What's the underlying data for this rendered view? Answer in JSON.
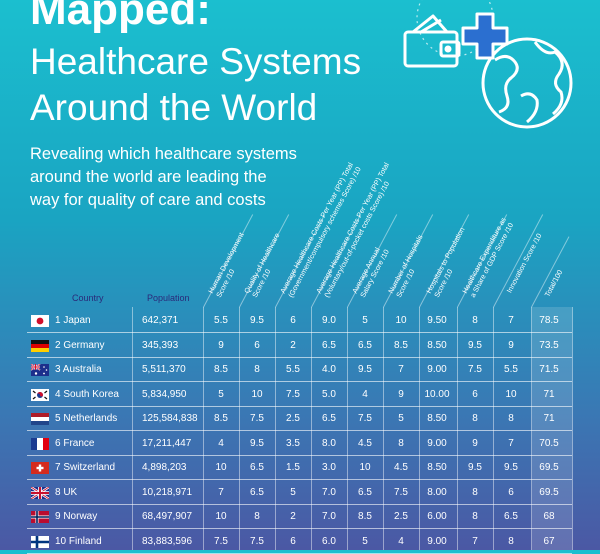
{
  "header": {
    "title": "Mapped:",
    "subtitle_line1": "Healthcare Systems",
    "subtitle_line2": "Around the World",
    "description_line1": "Revealing which healthcare systems",
    "description_line2": "around the world are leading the",
    "description_line3": "way for quality of care and costs"
  },
  "icons": [
    "wallet-icon",
    "medical-cross-icon",
    "globe-icon"
  ],
  "colors": {
    "teal": "#1bbfcf",
    "purple": "#4b58a4",
    "label_blue": "#2a2a7a"
  },
  "chart_data": {
    "type": "table",
    "columns": {
      "country": "Country",
      "population": "Population",
      "scores": [
        {
          "line1": "Human Development",
          "line2": "Score /10"
        },
        {
          "line1": "Quality of Healthcare",
          "line2": "Score /10"
        },
        {
          "line1": "Average Healthcare Costs Per Year (PP) Total",
          "line2": "(Government/compulsory schemes Score) /10"
        },
        {
          "line1": "Average Healthcare Costs Per Year (PP) Total",
          "line2": "(Voluntary/out-of-pocket costs Score) /10"
        },
        {
          "line1": "Average Annual",
          "line2": "Salary Score /10"
        },
        {
          "line1": "Number of Hospitals",
          "line2": "Score /10"
        },
        {
          "line1": "Hospitals to Population",
          "line2": "Score /10"
        },
        {
          "line1": "Healthcare Expenditure as",
          "line2": "a Share of GDP Score /10"
        },
        {
          "line1": "Innovation Score /10",
          "line2": ""
        },
        {
          "line1": "Total/100",
          "line2": ""
        }
      ]
    },
    "rows": [
      {
        "rank": "1",
        "country": "Japan",
        "flag": "japan-flag-icon",
        "population": "642,371",
        "scores": [
          "5.5",
          "9.5",
          "6",
          "9.0",
          "5",
          "10",
          "9.50",
          "8",
          "7",
          "78.5"
        ]
      },
      {
        "rank": "2",
        "country": "Germany",
        "flag": "germany-flag-icon",
        "population": "345,393",
        "scores": [
          "9",
          "6",
          "2",
          "6.5",
          "6.5",
          "8.5",
          "8.50",
          "9.5",
          "9",
          "73.5"
        ]
      },
      {
        "rank": "3",
        "country": "Australia",
        "flag": "australia-flag-icon",
        "population": "5,511,370",
        "scores": [
          "8.5",
          "8",
          "5.5",
          "4.0",
          "9.5",
          "7",
          "9.00",
          "7.5",
          "5.5",
          "71.5"
        ]
      },
      {
        "rank": "4",
        "country": "South Korea",
        "flag": "south-korea-flag-icon",
        "population": "5,834,950",
        "scores": [
          "5",
          "10",
          "7.5",
          "5.0",
          "4",
          "9",
          "10.00",
          "6",
          "10",
          "71"
        ]
      },
      {
        "rank": "5",
        "country": "Netherlands",
        "flag": "netherlands-flag-icon",
        "population": "125,584,838",
        "scores": [
          "8.5",
          "7.5",
          "2.5",
          "6.5",
          "7.5",
          "5",
          "8.50",
          "8",
          "8",
          "71"
        ]
      },
      {
        "rank": "6",
        "country": "France",
        "flag": "france-flag-icon",
        "population": "17,211,447",
        "scores": [
          "4",
          "9.5",
          "3.5",
          "8.0",
          "4.5",
          "8",
          "9.00",
          "9",
          "7",
          "70.5"
        ]
      },
      {
        "rank": "7",
        "country": "Switzerland",
        "flag": "switzerland-flag-icon",
        "population": "4,898,203",
        "scores": [
          "10",
          "6.5",
          "1.5",
          "3.0",
          "10",
          "4.5",
          "8.50",
          "9.5",
          "9.5",
          "69.5"
        ]
      },
      {
        "rank": "8",
        "country": "UK",
        "flag": "uk-flag-icon",
        "population": "10,218,971",
        "scores": [
          "7",
          "6.5",
          "5",
          "7.0",
          "6.5",
          "7.5",
          "8.00",
          "8",
          "6",
          "69.5"
        ]
      },
      {
        "rank": "9",
        "country": "Norway",
        "flag": "norway-flag-icon",
        "population": "68,497,907",
        "scores": [
          "10",
          "8",
          "2",
          "7.0",
          "8.5",
          "2.5",
          "6.00",
          "8",
          "6.5",
          "68"
        ]
      },
      {
        "rank": "10",
        "country": "Finland",
        "flag": "finland-flag-icon",
        "population": "83,883,596",
        "scores": [
          "7.5",
          "7.5",
          "6",
          "6.0",
          "5",
          "4",
          "9.00",
          "7",
          "8",
          "67"
        ]
      }
    ]
  }
}
